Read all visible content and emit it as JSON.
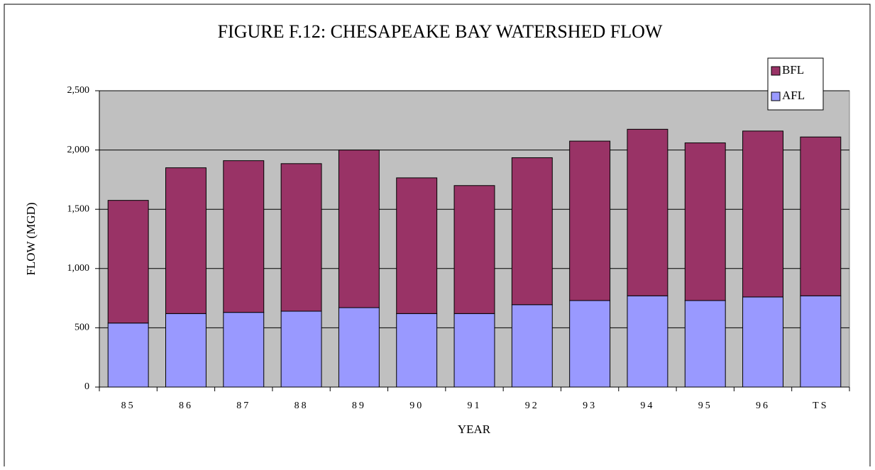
{
  "chart_data": {
    "type": "stacked_bar",
    "title": "FIGURE F.12: CHESAPEAKE BAY WATERSHED FLOW",
    "x_label": "YEAR",
    "y_label": "FLOW (MGD)",
    "categories": [
      "85",
      "86",
      "87",
      "88",
      "89",
      "90",
      "91",
      "92",
      "93",
      "94",
      "95",
      "96",
      "TS"
    ],
    "series": [
      {
        "name": "AFL",
        "color": "#9999ff",
        "values": [
          540,
          620,
          630,
          640,
          670,
          620,
          620,
          695,
          730,
          770,
          730,
          760,
          770
        ]
      },
      {
        "name": "BFL",
        "color": "#993366",
        "values": [
          1035,
          1230,
          1280,
          1245,
          1330,
          1145,
          1080,
          1240,
          1345,
          1405,
          1330,
          1400,
          1340
        ]
      }
    ],
    "ylim": [
      0,
      2500
    ],
    "yticks": [
      0,
      500,
      {
        "value": 1000,
        "label": "1,000"
      },
      {
        "value": 1500,
        "label": "1,500"
      },
      {
        "value": 2000,
        "label": "2,000"
      },
      {
        "value": 2500,
        "label": "2,500"
      }
    ],
    "grid": true,
    "plot_background": "#c0c0c0",
    "legend": "top-right"
  }
}
